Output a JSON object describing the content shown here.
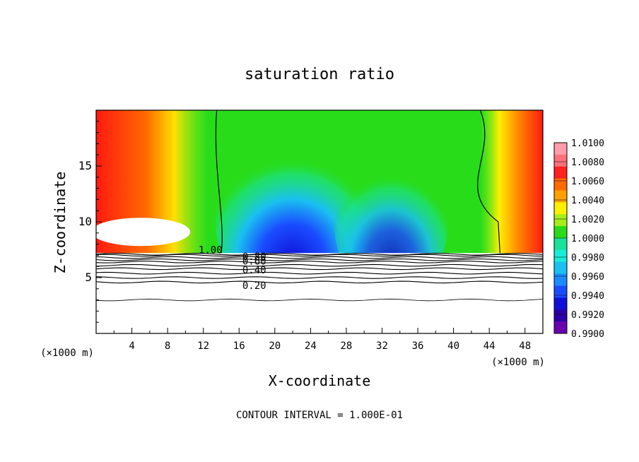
{
  "chart_data": {
    "type": "heatmap",
    "title": "saturation ratio",
    "xlabel": "X-coordinate",
    "ylabel": "Z-coordinate",
    "x_unit": "(×1000 m)",
    "y_unit": "(×1000 m)",
    "footnote": "CONTOUR INTERVAL = 1.000E-01",
    "xlim": [
      0,
      50
    ],
    "ylim": [
      0,
      20
    ],
    "x_ticks": [
      4,
      8,
      12,
      16,
      20,
      24,
      28,
      32,
      36,
      40,
      44,
      48
    ],
    "y_ticks": [
      5,
      10,
      15
    ],
    "ground_level": 7.2,
    "contour_lines": [
      {
        "label": "1.00",
        "label_x": 12.8,
        "label_y": 7.5
      },
      {
        "label": "0.80",
        "label_x": 17.7,
        "label_y": 6.9
      },
      {
        "label": "0.60",
        "label_x": 17.7,
        "label_y": 6.5
      },
      {
        "label": "0.40",
        "label_x": 17.7,
        "label_y": 5.7
      },
      {
        "label": "0.20",
        "label_x": 17.7,
        "label_y": 4.3
      }
    ],
    "colorbar": {
      "labels": [
        "1.0100",
        "1.0080",
        "1.0060",
        "1.0040",
        "1.0020",
        "1.0000",
        "0.9980",
        "0.9960",
        "0.9940",
        "0.9920",
        "0.9900"
      ],
      "colors": [
        "#ff9da8",
        "#ff6f7a",
        "#ff2020",
        "#ff6a00",
        "#ffa000",
        "#fff000",
        "#a6ee1a",
        "#28dc1a",
        "#1ae29a",
        "#1aebd9",
        "#1ac0f0",
        "#1a8cff",
        "#1a4cff",
        "#1010d8",
        "#2a00a8",
        "#6b00b0"
      ]
    }
  }
}
